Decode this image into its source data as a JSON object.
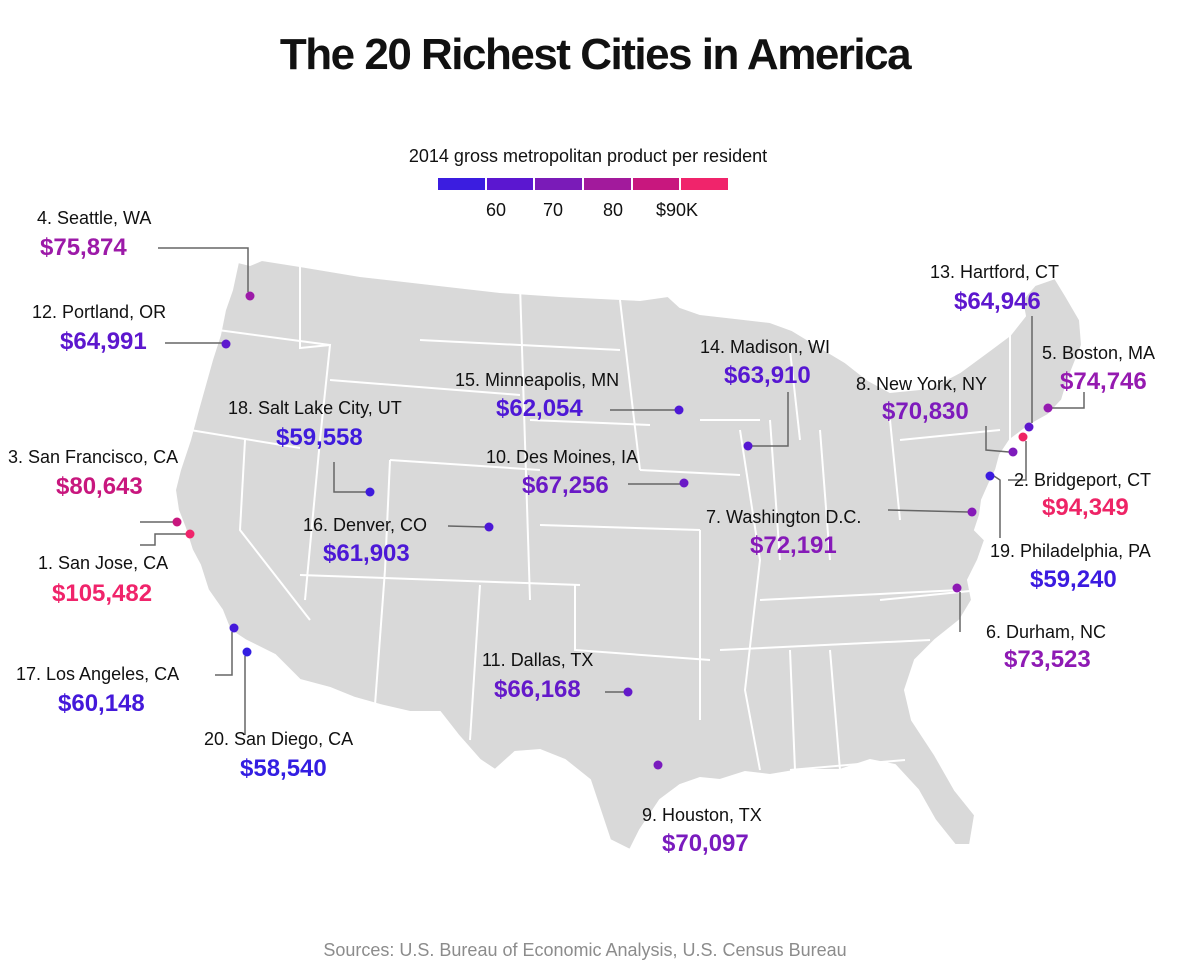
{
  "title": "The 20 Richest Cities in America",
  "legend": {
    "title": "2014 gross metropolitan product per resident",
    "colors": [
      "#3b1de0",
      "#5b17d0",
      "#7a1bb8",
      "#a21a9c",
      "#c8177e",
      "#f0246b"
    ],
    "ticks": [
      "60",
      "70",
      "80",
      "$90K"
    ]
  },
  "map": {
    "land_color": "#d9d9d9",
    "border_color": "#ffffff",
    "leader_color": "#666666"
  },
  "cities": [
    {
      "id": "san-jose",
      "name": "1. San Jose, CA",
      "value": "$105,482",
      "color": "#f0246b"
    },
    {
      "id": "bridgeport",
      "name": "2. Bridgeport, CT",
      "value": "$94,349",
      "color": "#ee2466"
    },
    {
      "id": "san-francisco",
      "name": "3. San Francisco, CA",
      "value": "$80,643",
      "color": "#c8177e"
    },
    {
      "id": "seattle",
      "name": "4. Seattle, WA",
      "value": "$75,874",
      "color": "#9c1aa8"
    },
    {
      "id": "boston",
      "name": "5. Boston, MA",
      "value": "$74,746",
      "color": "#951ab0"
    },
    {
      "id": "durham",
      "name": "6. Durham, NC",
      "value": "$73,523",
      "color": "#8e1ab4"
    },
    {
      "id": "washington",
      "name": "7. Washington D.C.",
      "value": "$72,191",
      "color": "#861ab8"
    },
    {
      "id": "new-york",
      "name": "8. New York, NY",
      "value": "$70,830",
      "color": "#7e1bbc"
    },
    {
      "id": "houston",
      "name": "9. Houston, TX",
      "value": "$70,097",
      "color": "#7a1bbe"
    },
    {
      "id": "des-moines",
      "name": "10. Des Moines, IA",
      "value": "$67,256",
      "color": "#6a19c6"
    },
    {
      "id": "dallas",
      "name": "11. Dallas, TX",
      "value": "$66,168",
      "color": "#6419ca"
    },
    {
      "id": "portland",
      "name": "12. Portland, OR",
      "value": "$64,991",
      "color": "#5d17ce"
    },
    {
      "id": "hartford",
      "name": "13. Hartford, CT",
      "value": "$64,946",
      "color": "#5d17ce"
    },
    {
      "id": "madison",
      "name": "14. Madison, WI",
      "value": "$63,910",
      "color": "#5617d2"
    },
    {
      "id": "minneapolis",
      "name": "15. Minneapolis, MN",
      "value": "$62,054",
      "color": "#4e18d6"
    },
    {
      "id": "denver",
      "name": "16. Denver, CO",
      "value": "$61,903",
      "color": "#4c18d6"
    },
    {
      "id": "los-angeles",
      "name": "17. Los Angeles, CA",
      "value": "$60,148",
      "color": "#4419da"
    },
    {
      "id": "salt-lake-city",
      "name": "18. Salt Lake City, UT",
      "value": "$59,558",
      "color": "#3e1bdc"
    },
    {
      "id": "philadelphia",
      "name": "19. Philadelphia, PA",
      "value": "$59,240",
      "color": "#3b1be0"
    },
    {
      "id": "san-diego",
      "name": "20. San Diego, CA",
      "value": "$58,540",
      "color": "#331ee2"
    }
  ],
  "source": "Sources: U.S. Bureau of Economic Analysis, U.S. Census Bureau"
}
